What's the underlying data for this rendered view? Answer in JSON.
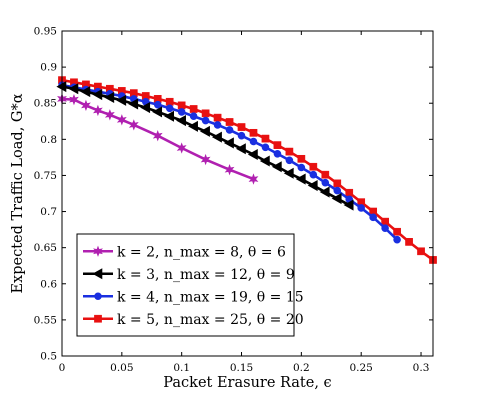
{
  "chart_data": {
    "type": "line",
    "xlabel": "Packet Erasure Rate, ϵ",
    "ylabel": "Expected Traffic Load, G*α",
    "xlim": [
      0,
      0.31
    ],
    "ylim": [
      0.5,
      0.95
    ],
    "xticks": [
      "0",
      "0.05",
      "0.1",
      "0.15",
      "0.2",
      "0.25",
      "0.3"
    ],
    "yticks": [
      "0.5",
      "0.55",
      "0.6",
      "0.65",
      "0.7",
      "0.75",
      "0.8",
      "0.85",
      "0.9",
      "0.95"
    ],
    "grid": false,
    "legend_position": "bottom-left",
    "series": [
      {
        "name": "k = 2, n_max = 8, θ = 6",
        "color": "#b020b0",
        "marker": "star",
        "x": [
          0,
          0.01,
          0.02,
          0.03,
          0.04,
          0.05,
          0.06,
          0.08,
          0.1,
          0.12,
          0.14,
          0.16
        ],
        "y": [
          0.856,
          0.855,
          0.847,
          0.84,
          0.834,
          0.827,
          0.82,
          0.805,
          0.788,
          0.772,
          0.758,
          0.745
        ]
      },
      {
        "name": "k = 3, n_max = 12, θ = 9",
        "color": "#000000",
        "marker": "triangle-left",
        "x": [
          0,
          0.01,
          0.02,
          0.03,
          0.04,
          0.05,
          0.06,
          0.07,
          0.08,
          0.09,
          0.1,
          0.11,
          0.12,
          0.13,
          0.14,
          0.15,
          0.16,
          0.17,
          0.18,
          0.19,
          0.2,
          0.21,
          0.22,
          0.23,
          0.24
        ],
        "y": [
          0.873,
          0.87,
          0.866,
          0.862,
          0.858,
          0.854,
          0.849,
          0.844,
          0.838,
          0.832,
          0.826,
          0.818,
          0.811,
          0.803,
          0.795,
          0.787,
          0.779,
          0.77,
          0.762,
          0.753,
          0.745,
          0.736,
          0.727,
          0.718,
          0.709
        ]
      },
      {
        "name": "k = 4, n_max = 19, θ = 15",
        "color": "#1a2fe0",
        "marker": "circle",
        "x": [
          0,
          0.01,
          0.02,
          0.03,
          0.04,
          0.05,
          0.06,
          0.07,
          0.08,
          0.09,
          0.1,
          0.11,
          0.12,
          0.13,
          0.14,
          0.15,
          0.16,
          0.17,
          0.18,
          0.19,
          0.2,
          0.21,
          0.22,
          0.23,
          0.24,
          0.25,
          0.26,
          0.27,
          0.28
        ],
        "y": [
          0.875,
          0.872,
          0.869,
          0.866,
          0.863,
          0.86,
          0.856,
          0.852,
          0.848,
          0.843,
          0.838,
          0.832,
          0.826,
          0.82,
          0.813,
          0.805,
          0.797,
          0.789,
          0.78,
          0.771,
          0.761,
          0.751,
          0.74,
          0.729,
          0.717,
          0.705,
          0.692,
          0.677,
          0.661
        ]
      },
      {
        "name": "k = 5, n_max = 25, θ = 20",
        "color": "#e81010",
        "marker": "square",
        "x": [
          0,
          0.01,
          0.02,
          0.03,
          0.04,
          0.05,
          0.06,
          0.07,
          0.08,
          0.09,
          0.1,
          0.11,
          0.12,
          0.13,
          0.14,
          0.15,
          0.16,
          0.17,
          0.18,
          0.19,
          0.2,
          0.21,
          0.22,
          0.23,
          0.24,
          0.25,
          0.26,
          0.27,
          0.28,
          0.29,
          0.3,
          0.31
        ],
        "y": [
          0.882,
          0.879,
          0.876,
          0.873,
          0.87,
          0.867,
          0.864,
          0.86,
          0.856,
          0.852,
          0.847,
          0.842,
          0.836,
          0.83,
          0.824,
          0.817,
          0.809,
          0.801,
          0.792,
          0.783,
          0.773,
          0.762,
          0.751,
          0.739,
          0.726,
          0.713,
          0.7,
          0.686,
          0.672,
          0.658,
          0.645,
          0.633
        ]
      }
    ]
  }
}
